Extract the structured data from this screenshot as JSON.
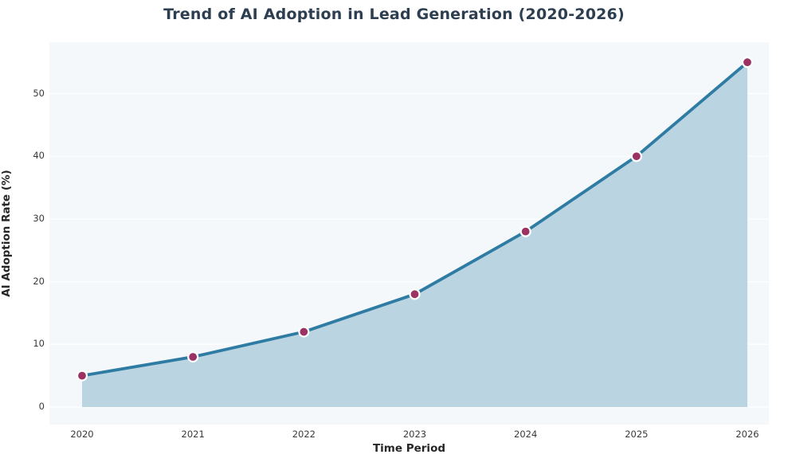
{
  "chart_data": {
    "type": "area",
    "title": "Trend of AI Adoption in Lead Generation (2020-2026)",
    "xlabel": "Time Period",
    "ylabel": "AI Adoption Rate (%)",
    "categories": [
      "2020",
      "2021",
      "2022",
      "2023",
      "2024",
      "2025",
      "2026"
    ],
    "values": [
      5,
      8,
      12,
      18,
      28,
      40,
      55
    ],
    "series_name": "AI Adoption Rate",
    "yticks": [
      0,
      10,
      20,
      30,
      40,
      50
    ],
    "ylim": [
      -2.8,
      58.2
    ],
    "grid": "horizontal",
    "legend": "none",
    "colors": {
      "line": "#2e7ba3",
      "area_fill": "#bad4e1",
      "marker": "#9c3163",
      "marker_edge": "#ffffff",
      "plot_background": "#f5f8fa",
      "grid_color": "#ffffff",
      "title_color": "#2c3e50",
      "tick_color": "#3a3a3a"
    }
  }
}
